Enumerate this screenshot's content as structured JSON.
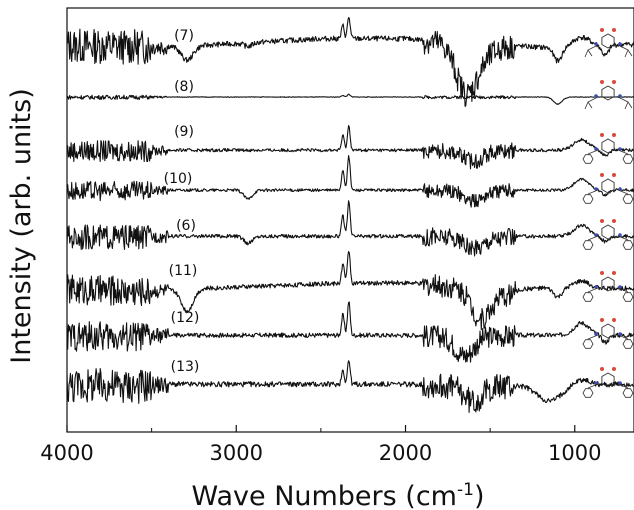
{
  "chart_data": {
    "type": "line",
    "xlabel": "Wave Numbers (cm",
    "xlabel_superscript": "-1",
    "xlabel_close": ")",
    "ylabel": "Intensity (arb. units)",
    "xlim": [
      4000,
      650
    ],
    "x_reversed": true,
    "x_ticks": [
      4000,
      3000,
      2000,
      1000
    ],
    "y_ticks": [],
    "grid": false,
    "legend": "none",
    "line_color": "#111111",
    "structure_colors": {
      "oxygen": "#d9493c",
      "nitrogen": "#3b4fb3",
      "bond": "#333333"
    },
    "series": [
      {
        "name": "(7)",
        "features": {
          "co2": [
            2350,
            0.45
          ],
          "nh": [
            3290,
            -0.35
          ],
          "ch": [
            2930,
            -0.1
          ],
          "amide": [
            1650,
            -0.85
          ],
          "fingerprint": [
            1600,
            -0.9
          ],
          "band1100": [
            1100,
            -0.4
          ],
          "band960": [
            960,
            0.25
          ],
          "band820": [
            820,
            -0.3
          ],
          "water_noise": 1.0,
          "baseline": [
            [
              4000,
              0.05
            ],
            [
              3300,
              -0.05
            ],
            [
              2500,
              0.3
            ],
            [
              2000,
              0.3
            ],
            [
              1700,
              0.15
            ],
            [
              1200,
              -0.1
            ],
            [
              650,
              0.05
            ]
          ]
        }
      },
      {
        "name": "(8)",
        "features": {
          "co2": [
            2350,
            0.06
          ],
          "band1100": [
            1100,
            -0.2
          ],
          "water_noise": 0.12,
          "baseline": [
            [
              4000,
              0
            ],
            [
              2000,
              0
            ],
            [
              650,
              0
            ]
          ]
        }
      },
      {
        "name": "(9)",
        "features": {
          "co2": [
            2350,
            0.5
          ],
          "amide": [
            1600,
            -0.3
          ],
          "band960": [
            960,
            0.3
          ],
          "band820": [
            820,
            -0.15
          ],
          "water_noise": 0.6,
          "baseline": [
            [
              4000,
              0
            ],
            [
              2000,
              0
            ],
            [
              650,
              0
            ]
          ]
        }
      },
      {
        "name": "(10)",
        "features": {
          "co2": [
            2350,
            0.7
          ],
          "ch": [
            2930,
            -0.25
          ],
          "amide": [
            1600,
            -0.3
          ],
          "band960": [
            960,
            0.3
          ],
          "band820": [
            820,
            -0.15
          ],
          "water_noise": 0.55,
          "baseline": [
            [
              4000,
              0
            ],
            [
              2000,
              0
            ],
            [
              650,
              0
            ]
          ]
        }
      },
      {
        "name": "(6)",
        "features": {
          "co2": [
            2350,
            0.7
          ],
          "ch": [
            2930,
            -0.2
          ],
          "amide": [
            1600,
            -0.35
          ],
          "band960": [
            960,
            0.3
          ],
          "band820": [
            820,
            -0.15
          ],
          "water_noise": 0.7,
          "baseline": [
            [
              4000,
              0
            ],
            [
              2000,
              0
            ],
            [
              650,
              0
            ]
          ]
        }
      },
      {
        "name": "(11)",
        "features": {
          "co2": [
            2350,
            0.7
          ],
          "nh": [
            3290,
            -0.55
          ],
          "amide": [
            1560,
            -0.8
          ],
          "fingerprint": [
            1450,
            -0.3
          ],
          "band1100": [
            1100,
            -0.25
          ],
          "band960": [
            960,
            0.2
          ],
          "water_noise": 0.85,
          "baseline": [
            [
              4000,
              0
            ],
            [
              3500,
              -0.1
            ],
            [
              2500,
              0.2
            ],
            [
              2000,
              0.25
            ],
            [
              1700,
              0.1
            ],
            [
              1200,
              0
            ],
            [
              650,
              0
            ]
          ]
        }
      },
      {
        "name": "(12)",
        "features": {
          "co2": [
            2350,
            0.7
          ],
          "amide": [
            1650,
            -0.55
          ],
          "band960": [
            960,
            0.35
          ],
          "band820": [
            820,
            -0.2
          ],
          "water_noise": 0.85,
          "baseline": [
            [
              4000,
              0
            ],
            [
              2000,
              0
            ],
            [
              650,
              0
            ]
          ]
        }
      },
      {
        "name": "(13)",
        "features": {
          "co2": [
            2350,
            0.5
          ],
          "amide": [
            1600,
            -0.45
          ],
          "band1150": [
            1150,
            -0.45
          ],
          "band960": [
            960,
            0.15
          ],
          "water_noise": 1.0,
          "baseline": [
            [
              4000,
              0
            ],
            [
              2000,
              0
            ],
            [
              1300,
              -0.05
            ],
            [
              650,
              0
            ]
          ]
        }
      }
    ]
  }
}
